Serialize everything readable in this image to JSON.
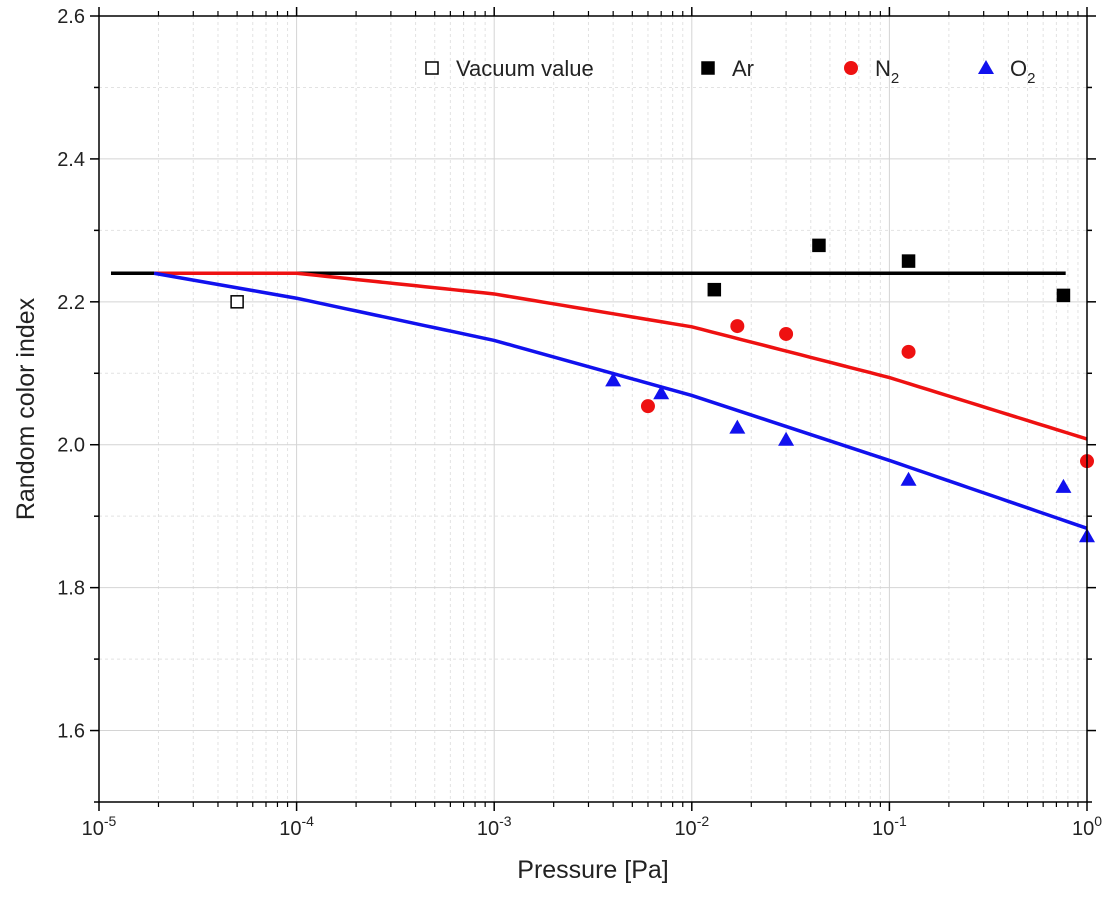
{
  "chart_data": {
    "type": "scatter",
    "title": "",
    "xlabel": "Pressure [Pa]",
    "ylabel": "Random color index",
    "xscale": "log",
    "xlim": [
      1e-05,
      1
    ],
    "ylim": [
      1.5,
      2.6
    ],
    "x_ticks": [
      {
        "base": "10",
        "exp": "-5",
        "value": 1e-05
      },
      {
        "base": "10",
        "exp": "-4",
        "value": 0.0001
      },
      {
        "base": "10",
        "exp": "-3",
        "value": 0.001
      },
      {
        "base": "10",
        "exp": "-2",
        "value": 0.01
      },
      {
        "base": "10",
        "exp": "-1",
        "value": 0.1
      },
      {
        "base": "10",
        "exp": "0",
        "value": 1
      }
    ],
    "y_ticks": [
      "1.6",
      "1.8",
      "2.0",
      "2.2",
      "2.4",
      "2.6"
    ],
    "grid": true,
    "legend_position": "top-right",
    "series": [
      {
        "name": "Vacuum value",
        "name_sub": "",
        "marker": "square-open",
        "color": "#000000",
        "points": [
          [
            5e-05,
            2.2
          ]
        ]
      },
      {
        "name": "Ar",
        "name_sub": "",
        "marker": "square",
        "color": "#000000",
        "points": [
          [
            0.013,
            2.217
          ],
          [
            0.044,
            2.279
          ],
          [
            0.125,
            2.257
          ],
          [
            0.76,
            2.209
          ]
        ]
      },
      {
        "name": "N",
        "name_sub": "2",
        "marker": "circle",
        "color": "#ee1111",
        "points": [
          [
            0.006,
            2.054
          ],
          [
            0.017,
            2.166
          ],
          [
            0.03,
            2.155
          ],
          [
            0.125,
            2.13
          ],
          [
            1.0,
            1.977
          ]
        ]
      },
      {
        "name": "O",
        "name_sub": "2",
        "marker": "triangle",
        "color": "#1111ee",
        "points": [
          [
            0.004,
            2.09
          ],
          [
            0.007,
            2.072
          ],
          [
            0.017,
            2.024
          ],
          [
            0.03,
            2.007
          ],
          [
            0.125,
            1.951
          ],
          [
            0.76,
            1.941
          ],
          [
            1.0,
            1.872
          ]
        ]
      }
    ],
    "fits": [
      {
        "color": "#000000",
        "points": [
          [
            1.15e-05,
            2.24
          ],
          [
            0.78,
            2.24
          ]
        ]
      },
      {
        "color": "#ee1111",
        "points": [
          [
            1.9e-05,
            2.24
          ],
          [
            0.0001,
            2.24
          ],
          [
            0.001,
            2.211
          ],
          [
            0.01,
            2.165
          ],
          [
            0.1,
            2.094
          ],
          [
            1.0,
            2.008
          ]
        ]
      },
      {
        "color": "#1111ee",
        "points": [
          [
            1.9e-05,
            2.24
          ],
          [
            0.0001,
            2.205
          ],
          [
            0.001,
            2.146
          ],
          [
            0.01,
            2.069
          ],
          [
            0.1,
            1.978
          ],
          [
            1.0,
            1.883
          ]
        ]
      }
    ]
  }
}
